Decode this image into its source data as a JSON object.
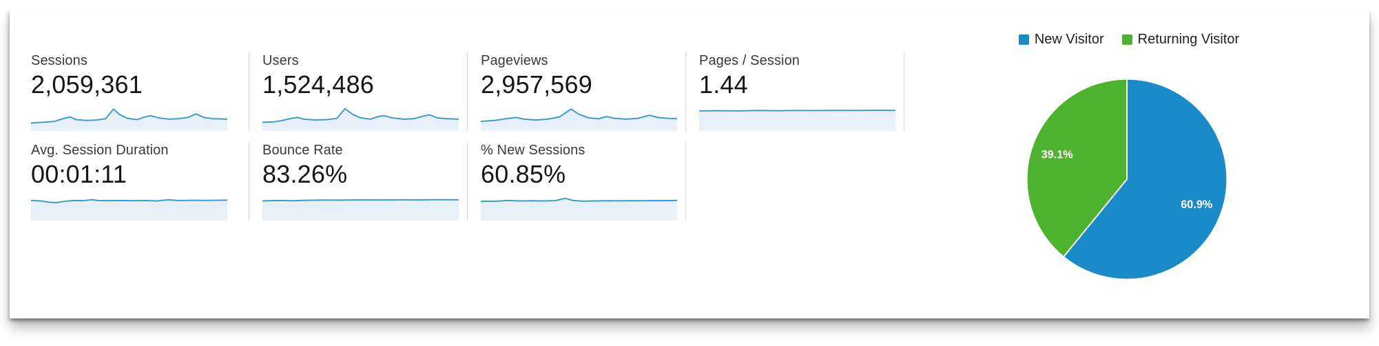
{
  "colors": {
    "spark_line": "#3e9ad2",
    "spark_fill": "#e8f1fa",
    "pie_blue": "#1b8ac9",
    "pie_green": "#4db32e",
    "divider": "#d8d8d8"
  },
  "metrics": [
    {
      "label": "Sessions",
      "value": "2,059,361",
      "spark": "sessions"
    },
    {
      "label": "Users",
      "value": "1,524,486",
      "spark": "users"
    },
    {
      "label": "Pageviews",
      "value": "2,957,569",
      "spark": "pageviews"
    },
    {
      "label": "Pages / Session",
      "value": "1.44",
      "spark": "pages_session"
    },
    {
      "label": "Avg. Session Duration",
      "value": "00:01:11",
      "spark": "avg_duration"
    },
    {
      "label": "Bounce Rate",
      "value": "83.26%",
      "spark": "bounce_rate"
    },
    {
      "label": "% New Sessions",
      "value": "60.85%",
      "spark": "new_sessions"
    }
  ],
  "sparklines": {
    "sessions": [
      [
        0,
        21
      ],
      [
        6,
        20
      ],
      [
        12,
        19
      ],
      [
        17,
        15.5
      ],
      [
        20,
        14
      ],
      [
        23,
        17
      ],
      [
        28,
        18
      ],
      [
        33,
        17.5
      ],
      [
        38,
        16
      ],
      [
        42,
        5
      ],
      [
        45,
        11
      ],
      [
        49,
        15.5
      ],
      [
        54,
        17
      ],
      [
        58,
        14
      ],
      [
        61,
        12.5
      ],
      [
        65,
        15
      ],
      [
        70,
        16.5
      ],
      [
        75,
        16
      ],
      [
        80,
        14.5
      ],
      [
        84,
        10.5
      ],
      [
        88,
        14.5
      ],
      [
        93,
        16
      ],
      [
        100,
        16.5
      ]
    ],
    "users": [
      [
        0,
        20
      ],
      [
        6,
        19.5
      ],
      [
        10,
        18
      ],
      [
        15,
        15.5
      ],
      [
        18,
        14.5
      ],
      [
        21,
        16.5
      ],
      [
        27,
        17.5
      ],
      [
        33,
        17
      ],
      [
        38,
        15.5
      ],
      [
        42,
        4.5
      ],
      [
        46,
        11
      ],
      [
        50,
        15
      ],
      [
        55,
        16.5
      ],
      [
        59,
        13.5
      ],
      [
        62,
        12.5
      ],
      [
        66,
        15
      ],
      [
        72,
        16.5
      ],
      [
        77,
        16
      ],
      [
        82,
        13
      ],
      [
        85,
        11.5
      ],
      [
        89,
        15
      ],
      [
        94,
        16
      ],
      [
        100,
        16.5
      ]
    ],
    "pageviews": [
      [
        0,
        19
      ],
      [
        7,
        18
      ],
      [
        13,
        16
      ],
      [
        18,
        14.5
      ],
      [
        22,
        16.5
      ],
      [
        28,
        17.5
      ],
      [
        34,
        16.5
      ],
      [
        40,
        14
      ],
      [
        46,
        5
      ],
      [
        50,
        11
      ],
      [
        55,
        15
      ],
      [
        60,
        16
      ],
      [
        64,
        13.5
      ],
      [
        68,
        15.5
      ],
      [
        74,
        16.5
      ],
      [
        80,
        15.5
      ],
      [
        86,
        12
      ],
      [
        90,
        14.5
      ],
      [
        95,
        15.5
      ],
      [
        100,
        16
      ]
    ],
    "pages_session": [
      [
        0,
        7
      ],
      [
        10,
        6.8
      ],
      [
        20,
        7
      ],
      [
        30,
        6.5
      ],
      [
        40,
        6.8
      ],
      [
        50,
        6.5
      ],
      [
        60,
        6.6
      ],
      [
        70,
        6.4
      ],
      [
        80,
        6.5
      ],
      [
        90,
        6.3
      ],
      [
        100,
        6.4
      ]
    ],
    "avg_duration": [
      [
        0,
        7
      ],
      [
        5,
        7.5
      ],
      [
        9,
        9
      ],
      [
        13,
        9.5
      ],
      [
        17,
        8
      ],
      [
        22,
        7
      ],
      [
        27,
        7.2
      ],
      [
        31,
        6
      ],
      [
        34,
        7
      ],
      [
        40,
        7.2
      ],
      [
        46,
        7
      ],
      [
        52,
        7.3
      ],
      [
        58,
        7
      ],
      [
        64,
        7.5
      ],
      [
        70,
        6.2
      ],
      [
        75,
        7
      ],
      [
        82,
        6.8
      ],
      [
        90,
        6.9
      ],
      [
        100,
        6.6
      ]
    ],
    "bounce_rate": [
      [
        0,
        7.5
      ],
      [
        8,
        7
      ],
      [
        15,
        7.3
      ],
      [
        22,
        6.8
      ],
      [
        30,
        6.5
      ],
      [
        40,
        6.6
      ],
      [
        50,
        6.3
      ],
      [
        60,
        6.4
      ],
      [
        70,
        6.2
      ],
      [
        80,
        6.3
      ],
      [
        90,
        6.1
      ],
      [
        100,
        6.2
      ]
    ],
    "new_sessions": [
      [
        0,
        8
      ],
      [
        8,
        7.8
      ],
      [
        14,
        7
      ],
      [
        20,
        7.5
      ],
      [
        26,
        7.3
      ],
      [
        32,
        7.5
      ],
      [
        38,
        7.2
      ],
      [
        43,
        4.5
      ],
      [
        47,
        7
      ],
      [
        52,
        7.8
      ],
      [
        58,
        7.5
      ],
      [
        64,
        7.3
      ],
      [
        70,
        7.4
      ],
      [
        76,
        7.2
      ],
      [
        82,
        7.3
      ],
      [
        88,
        7.1
      ],
      [
        94,
        7.2
      ],
      [
        100,
        7
      ]
    ]
  },
  "pie": {
    "slices": [
      {
        "label": "New Visitor",
        "pct": 60.9,
        "display": "60.9%",
        "color": "#1b8ac9"
      },
      {
        "label": "Returning Visitor",
        "pct": 39.1,
        "display": "39.1%",
        "color": "#4db32e"
      }
    ]
  },
  "legend": {
    "items": [
      {
        "label": "New Visitor",
        "color": "#1b8ac9"
      },
      {
        "label": "Returning Visitor",
        "color": "#4db32e"
      }
    ]
  },
  "chart_data": [
    {
      "type": "pie",
      "title": "New vs Returning Visitor share",
      "labels": [
        "New Visitor",
        "Returning Visitor"
      ],
      "values": [
        60.9,
        39.1
      ],
      "unit": "%",
      "colors": [
        "#1b8ac9",
        "#4db32e"
      ],
      "legend_position": "top",
      "start_angle": "12 o'clock, clockwise, New Visitor first"
    },
    {
      "type": "line",
      "title": "Metric summary sparklines (unlabeled axes)",
      "series": [
        {
          "name": "Sessions",
          "summary_value": "2,059,361"
        },
        {
          "name": "Users",
          "summary_value": "1,524,486"
        },
        {
          "name": "Pageviews",
          "summary_value": "2,957,569"
        },
        {
          "name": "Pages / Session",
          "summary_value": "1.44"
        },
        {
          "name": "Avg. Session Duration",
          "summary_value": "00:01:11"
        },
        {
          "name": "Bounce Rate",
          "summary_value": "83.26%"
        },
        {
          "name": "% New Sessions",
          "summary_value": "60.85%"
        }
      ]
    }
  ]
}
